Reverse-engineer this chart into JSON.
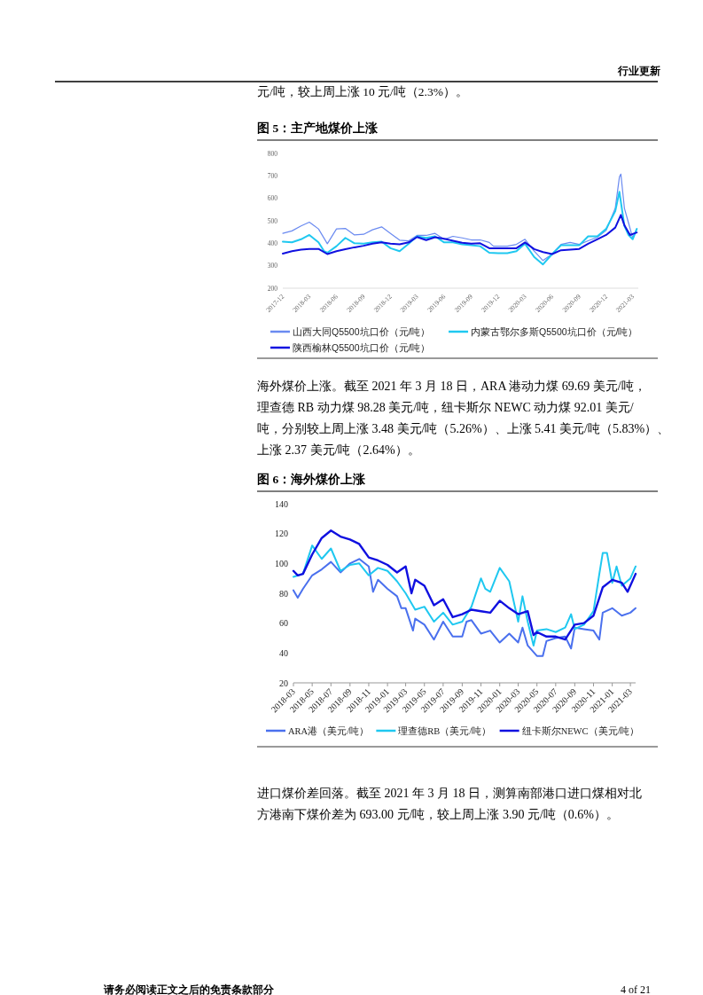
{
  "chart_data": [
    {
      "type": "line",
      "title": "图 5：主产地煤价上涨",
      "annotations": [
        "行业更新",
        "元/吨，较上周上涨 10 元/吨（2.3%）。"
      ],
      "xlim": [
        "2017-12-01",
        "2021-03-20"
      ],
      "xticks": [
        "2017-12",
        "2018-03",
        "2018-06",
        "2018-09",
        "2018-12",
        "2019-03",
        "2019-06",
        "2019-09",
        "2019-12",
        "2020-03",
        "2020-06",
        "2020-09",
        "2020-12",
        "2021-03"
      ],
      "ylim": [
        200,
        800
      ],
      "yticks": [
        200,
        300,
        400,
        500,
        600,
        700,
        800
      ],
      "grid": false,
      "legend": "bottom",
      "marker": "none",
      "line_style": "solid",
      "series": [
        {
          "name": "山西大同Q5500坑口价（元/吨）",
          "color": "#6a8af0",
          "x": [
            "2017-12-01",
            "2018-01-01",
            "2018-02-01",
            "2018-03-01",
            "2018-04-01",
            "2018-05-01",
            "2018-06-01",
            "2018-07-01",
            "2018-08-01",
            "2018-09-01",
            "2018-10-01",
            "2018-11-01",
            "2018-12-01",
            "2019-01-01",
            "2019-02-01",
            "2019-03-01",
            "2019-04-01",
            "2019-05-01",
            "2019-06-01",
            "2019-07-01",
            "2019-08-01",
            "2019-09-01",
            "2019-10-01",
            "2019-11-01",
            "2019-11-15",
            "2019-12-01",
            "2020-01-01",
            "2020-02-01",
            "2020-03-01",
            "2020-04-01",
            "2020-05-01",
            "2020-06-01",
            "2020-07-01",
            "2020-08-01",
            "2020-09-01",
            "2020-10-01",
            "2020-11-01",
            "2020-12-01",
            "2021-01-01",
            "2021-01-15",
            "2021-01-20",
            "2021-02-01",
            "2021-02-15",
            "2021-03-01",
            "2021-03-15"
          ],
          "values": [
            444,
            455,
            477,
            494,
            464,
            398,
            464,
            466,
            437,
            440,
            460,
            473,
            444,
            414,
            411,
            435,
            435,
            444,
            418,
            431,
            424,
            415,
            415,
            404,
            387,
            387,
            387,
            395,
            418,
            365,
            323,
            352,
            395,
            404,
            395,
            411,
            427,
            457,
            556,
            695,
            708,
            556,
            490,
            424,
            464
          ]
        },
        {
          "name": "内蒙古鄂尔多斯Q5500坑口价（元/吨）",
          "color": "#1fc8f0",
          "x": [
            "2017-12-01",
            "2018-01-01",
            "2018-02-01",
            "2018-03-01",
            "2018-04-01",
            "2018-04-20",
            "2018-05-01",
            "2018-06-01",
            "2018-07-01",
            "2018-08-01",
            "2018-09-01",
            "2018-10-01",
            "2018-11-01",
            "2018-12-01",
            "2019-01-01",
            "2019-02-01",
            "2019-03-01",
            "2019-04-01",
            "2019-05-01",
            "2019-06-01",
            "2019-07-01",
            "2019-08-01",
            "2019-09-01",
            "2019-10-01",
            "2019-11-01",
            "2019-12-01",
            "2020-01-01",
            "2020-02-01",
            "2020-03-01",
            "2020-04-01",
            "2020-05-01",
            "2020-06-01",
            "2020-07-01",
            "2020-08-01",
            "2020-09-01",
            "2020-10-01",
            "2020-11-01",
            "2020-12-01",
            "2021-01-01",
            "2021-01-15",
            "2021-02-01",
            "2021-02-15",
            "2021-03-01",
            "2021-03-15"
          ],
          "values": [
            407,
            404,
            418,
            437,
            404,
            365,
            358,
            387,
            424,
            400,
            398,
            404,
            407,
            378,
            365,
            398,
            431,
            424,
            431,
            404,
            404,
            395,
            391,
            387,
            358,
            356,
            356,
            365,
            398,
            339,
            306,
            352,
            391,
            391,
            391,
            431,
            431,
            464,
            543,
            629,
            477,
            437,
            418,
            464
          ]
        },
        {
          "name": "陕西榆林Q5500坑口价（元/吨）",
          "color": "#1010e0",
          "x": [
            "2017-12-01",
            "2018-01-01",
            "2018-02-01",
            "2018-03-01",
            "2018-04-01",
            "2018-05-01",
            "2018-06-01",
            "2018-07-01",
            "2018-08-01",
            "2018-09-01",
            "2018-10-01",
            "2018-11-01",
            "2018-12-01",
            "2019-01-01",
            "2019-02-01",
            "2019-03-01",
            "2019-04-01",
            "2019-05-01",
            "2019-06-01",
            "2019-07-01",
            "2019-08-01",
            "2019-09-01",
            "2019-10-01",
            "2019-11-01",
            "2019-12-01",
            "2020-01-01",
            "2020-02-01",
            "2020-03-01",
            "2020-04-01",
            "2020-05-01",
            "2020-06-01",
            "2020-07-01",
            "2020-08-01",
            "2020-09-01",
            "2020-10-01",
            "2020-11-01",
            "2020-12-01",
            "2021-01-01",
            "2021-01-20",
            "2021-02-01",
            "2021-02-20",
            "2021-03-15"
          ],
          "values": [
            354,
            365,
            372,
            375,
            375,
            352,
            365,
            374,
            382,
            389,
            398,
            404,
            398,
            395,
            404,
            428,
            414,
            427,
            420,
            411,
            402,
            398,
            400,
            378,
            378,
            378,
            378,
            404,
            374,
            361,
            352,
            369,
            372,
            375,
            398,
            418,
            437,
            470,
            526,
            480,
            437,
            448
          ]
        }
      ]
    },
    {
      "type": "line",
      "title": "图 6：海外煤价上涨",
      "annotations": [
        "海外煤价上涨。截至 2021 年 3 月 18 日，ARA 港动力煤 69.69 美元/吨，",
        "理查德 RB 动力煤 98.28 美元/吨，纽卡斯尔 NEWC 动力煤 92.01 美元/",
        "吨，分别较上周上涨 3.48 美元/吨（5.26%）、上涨 5.41 美元/吨（5.83%）、",
        "上涨 2.37 美元/吨（2.64%）。",
        "进口煤价差回落。截至 2021 年 3 月 18 日，测算南部港口进口煤相对北",
        "方港南下煤价差为 693.00 元/吨，较上周上涨 3.90 元/吨（0.6%）。",
        "请务必阅读正文之后的免责条款部分",
        "4 of 21"
      ],
      "xlim": [
        "2018-03-01",
        "2021-03-18"
      ],
      "xticks": [
        "2018-03",
        "2018-05",
        "2018-07",
        "2018-09",
        "2018-11",
        "2019-01",
        "2019-03",
        "2019-05",
        "2019-07",
        "2019-09",
        "2019-11",
        "2020-01",
        "2020-03",
        "2020-05",
        "2020-07",
        "2020-09",
        "2020-11",
        "2021-01",
        "2021-03"
      ],
      "ylim": [
        20,
        140
      ],
      "yticks": [
        20,
        40,
        60,
        80,
        100,
        120,
        140
      ],
      "grid": false,
      "legend": "bottom",
      "marker": "none",
      "line_style": "solid",
      "series": [
        {
          "name": "ARA港（美元/吨）",
          "color": "#4a70ee",
          "x": [
            "2018-03-01",
            "2018-03-15",
            "2018-04-01",
            "2018-05-01",
            "2018-06-01",
            "2018-07-01",
            "2018-08-01",
            "2018-09-01",
            "2018-10-01",
            "2018-11-01",
            "2018-11-15",
            "2018-12-01",
            "2019-01-01",
            "2019-02-01",
            "2019-02-15",
            "2019-03-01",
            "2019-03-25",
            "2019-04-01",
            "2019-05-01",
            "2019-06-01",
            "2019-07-01",
            "2019-08-01",
            "2019-09-01",
            "2019-09-15",
            "2019-10-01",
            "2019-11-01",
            "2019-12-01",
            "2020-01-01",
            "2020-02-01",
            "2020-03-01",
            "2020-03-15",
            "2020-04-01",
            "2020-05-01",
            "2020-05-20",
            "2020-06-01",
            "2020-07-01",
            "2020-08-01",
            "2020-08-20",
            "2020-09-01",
            "2020-10-01",
            "2020-11-01",
            "2020-11-20",
            "2020-12-01",
            "2021-01-01",
            "2021-02-01",
            "2021-03-01",
            "2021-03-18"
          ],
          "values": [
            82,
            77,
            83,
            92,
            96,
            101,
            94,
            100,
            103,
            98,
            81,
            89,
            83,
            78,
            70,
            70,
            55,
            63,
            59,
            49,
            61,
            51,
            51,
            61,
            62,
            53,
            55,
            47,
            53,
            47,
            57,
            45,
            38,
            38,
            48,
            50,
            51,
            43,
            57,
            56,
            55,
            49,
            67,
            70,
            65,
            67,
            70
          ]
        },
        {
          "name": "理查德RB（美元/吨）",
          "color": "#1fc8f0",
          "x": [
            "2018-03-01",
            "2018-04-01",
            "2018-05-01",
            "2018-06-01",
            "2018-07-01",
            "2018-08-01",
            "2018-09-01",
            "2018-10-01",
            "2018-11-01",
            "2018-12-01",
            "2019-01-01",
            "2019-02-01",
            "2019-03-01",
            "2019-04-01",
            "2019-05-01",
            "2019-06-01",
            "2019-07-01",
            "2019-08-01",
            "2019-09-01",
            "2019-10-01",
            "2019-11-01",
            "2019-11-15",
            "2019-12-01",
            "2020-01-01",
            "2020-02-01",
            "2020-03-01",
            "2020-03-15",
            "2020-04-01",
            "2020-04-20",
            "2020-05-01",
            "2020-06-01",
            "2020-07-01",
            "2020-08-01",
            "2020-08-20",
            "2020-09-01",
            "2020-10-01",
            "2020-11-01",
            "2020-11-20",
            "2020-12-01",
            "2020-12-15",
            "2021-01-01",
            "2021-01-15",
            "2021-02-01",
            "2021-03-01",
            "2021-03-18"
          ],
          "values": [
            91,
            93,
            112,
            103,
            110,
            95,
            99,
            100,
            92,
            97,
            95,
            88,
            80,
            69,
            71,
            61,
            67,
            59,
            61,
            71,
            90,
            83,
            81,
            97,
            88,
            61,
            78,
            61,
            45,
            55,
            56,
            54,
            57,
            66,
            56,
            59,
            68,
            93,
            107,
            107,
            87,
            98,
            85,
            90,
            98
          ]
        },
        {
          "name": "纽卡斯尔NEWC（美元/吨）",
          "color": "#1010e0",
          "x": [
            "2018-03-01",
            "2018-03-15",
            "2018-04-01",
            "2018-05-01",
            "2018-06-01",
            "2018-07-01",
            "2018-08-01",
            "2018-09-01",
            "2018-10-01",
            "2018-11-01",
            "2018-12-01",
            "2019-01-01",
            "2019-02-01",
            "2019-03-01",
            "2019-03-20",
            "2019-04-01",
            "2019-05-01",
            "2019-06-01",
            "2019-07-01",
            "2019-08-01",
            "2019-09-01",
            "2019-10-01",
            "2019-11-01",
            "2019-12-01",
            "2020-01-01",
            "2020-02-01",
            "2020-03-01",
            "2020-04-01",
            "2020-04-20",
            "2020-05-01",
            "2020-06-01",
            "2020-07-01",
            "2020-08-01",
            "2020-09-01",
            "2020-10-01",
            "2020-11-01",
            "2020-12-01",
            "2021-01-01",
            "2021-02-01",
            "2021-02-20",
            "2021-03-18"
          ],
          "values": [
            95,
            92,
            93,
            106,
            117,
            122,
            118,
            116,
            113,
            104,
            102,
            99,
            94,
            98,
            80,
            89,
            85,
            72,
            76,
            64,
            66,
            69,
            68,
            67,
            75,
            70,
            66,
            68,
            52,
            54,
            51,
            51,
            49,
            59,
            60,
            65,
            84,
            89,
            87,
            81,
            93
          ]
        }
      ]
    }
  ]
}
